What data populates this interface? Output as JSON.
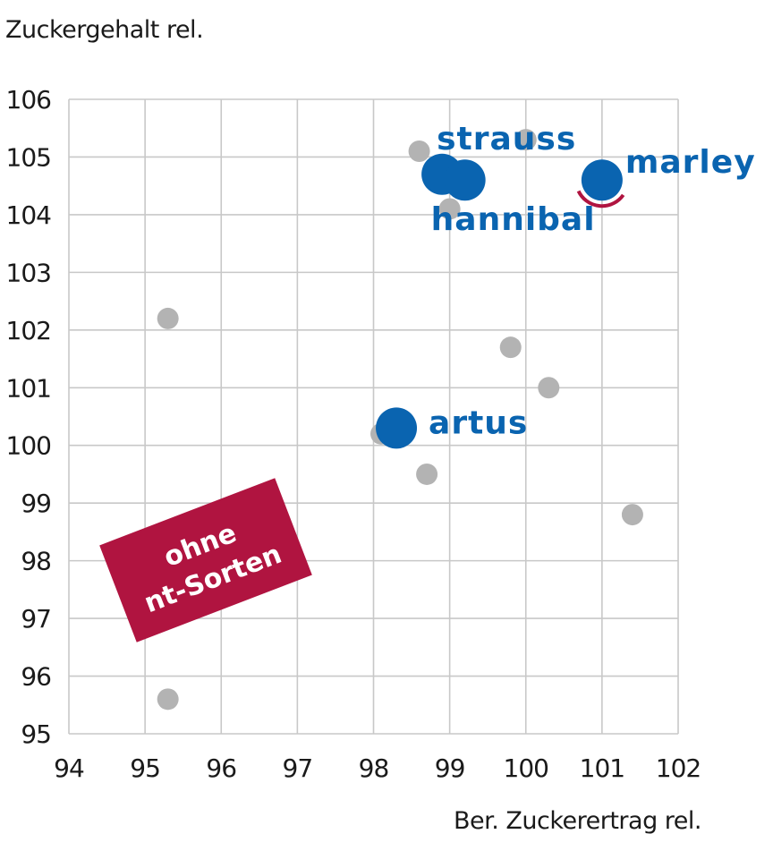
{
  "chart_data": {
    "type": "scatter",
    "ylabel": "Zuckergehalt rel.",
    "xlabel": "Ber. Zuckerertrag rel.",
    "xlim": [
      94,
      102
    ],
    "ylim": [
      95,
      106
    ],
    "x_ticks": [
      "94",
      "95",
      "96",
      "97",
      "98",
      "99",
      "100",
      "101",
      "102"
    ],
    "y_ticks": [
      "95",
      "96",
      "97",
      "98",
      "99",
      "100",
      "101",
      "102",
      "103",
      "104",
      "105",
      "106"
    ],
    "grid": true,
    "series": [
      {
        "color": "#b3b3b3",
        "points": [
          {
            "x": 95.3,
            "y": 102.2
          },
          {
            "x": 95.3,
            "y": 95.6
          },
          {
            "x": 98.1,
            "y": 100.2
          },
          {
            "x": 98.7,
            "y": 99.5
          },
          {
            "x": 98.6,
            "y": 105.1
          },
          {
            "x": 99.0,
            "y": 104.1
          },
          {
            "x": 100.0,
            "y": 105.3
          },
          {
            "x": 99.8,
            "y": 101.7
          },
          {
            "x": 100.3,
            "y": 101.0
          },
          {
            "x": 101.4,
            "y": 98.8
          }
        ]
      },
      {
        "color": "#0a64b0",
        "points": [
          {
            "x": 98.9,
            "y": 104.7,
            "label": "strauss"
          },
          {
            "x": 99.2,
            "y": 104.6,
            "label": "hannibal"
          },
          {
            "x": 101.0,
            "y": 104.6,
            "label": "marley"
          },
          {
            "x": 98.3,
            "y": 100.3,
            "label": "artus"
          }
        ]
      }
    ],
    "annotation": {
      "lines": [
        "ohne",
        "nt-Sorten"
      ],
      "color": "#b01440"
    },
    "highlight_color": "#b01440"
  }
}
